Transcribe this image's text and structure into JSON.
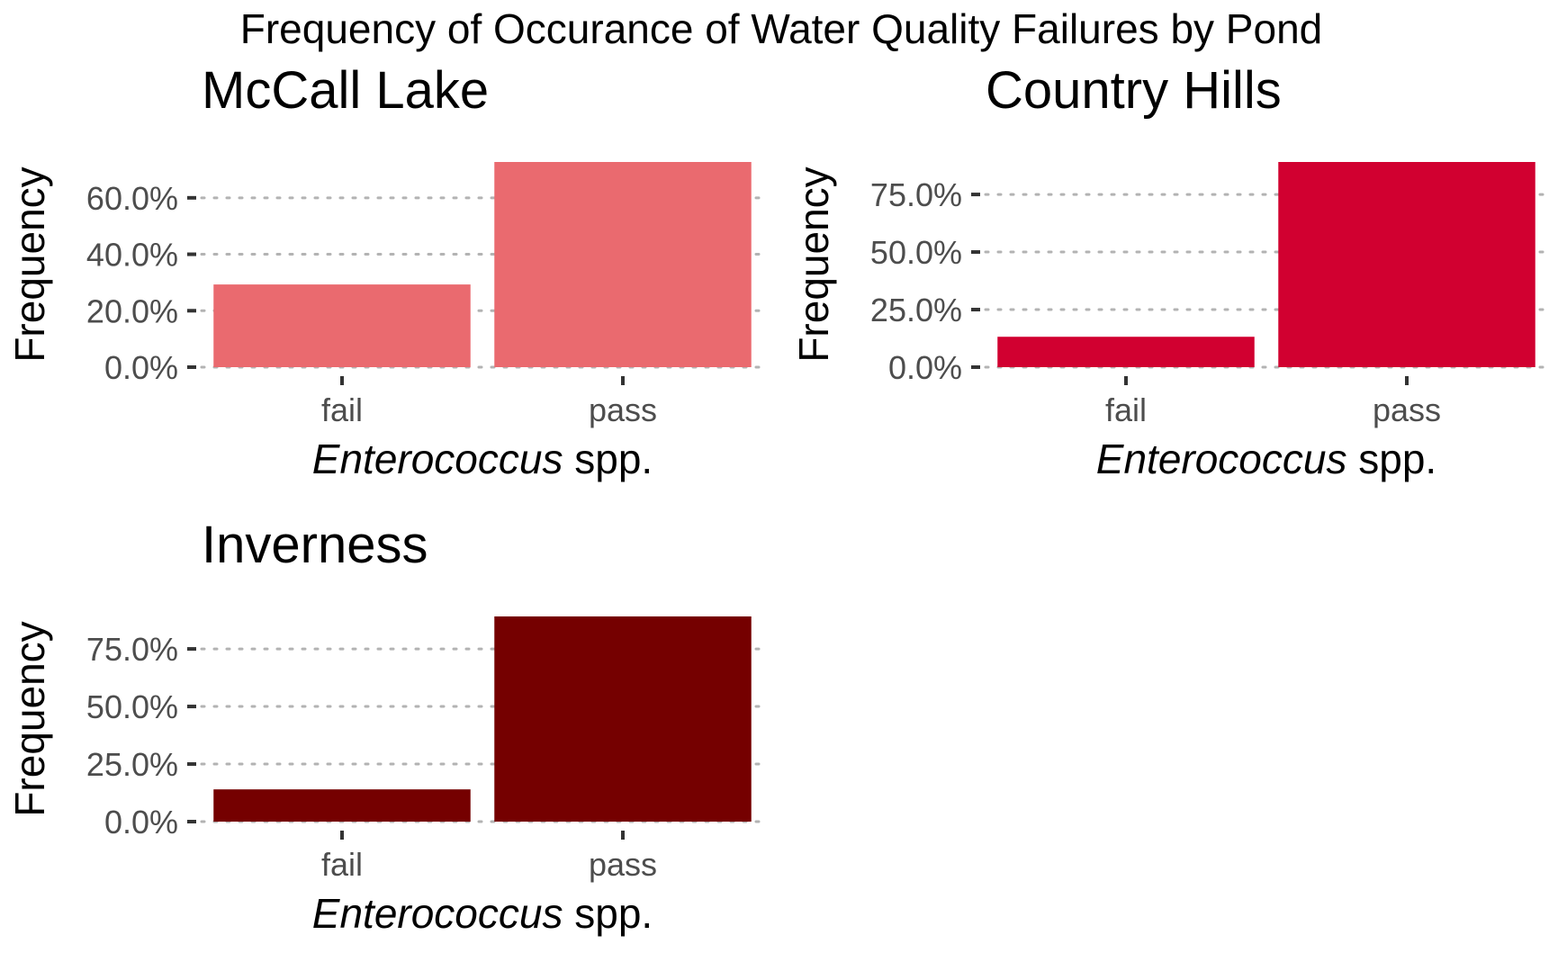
{
  "chart_data": {
    "title": "Frequency of Occurance of Water Quality Failures by Pond",
    "panels": [
      {
        "type": "bar",
        "title": "McCall Lake",
        "categories": [
          "fail",
          "pass"
        ],
        "values": [
          29.3,
          72.7
        ],
        "ylim": [
          0,
          72.7
        ],
        "yticks": [
          0,
          20,
          40,
          60
        ],
        "ytick_labels": [
          "0.0%",
          "20.0%",
          "40.0%",
          "60.0%"
        ],
        "ylabel": "Frequency",
        "xlabel_italic": "Enterococcus",
        "xlabel_rest": " spp.",
        "color": "#EA6A6F",
        "grid": "dotted, horizontal"
      },
      {
        "type": "bar",
        "title": "Country Hills",
        "categories": [
          "fail",
          "pass"
        ],
        "values": [
          13.2,
          89.1
        ],
        "ylim": [
          0,
          89.1
        ],
        "yticks": [
          0,
          25,
          50,
          75
        ],
        "ytick_labels": [
          "0.0%",
          "25.0%",
          "50.0%",
          "75.0%"
        ],
        "ylabel": "Frequency",
        "xlabel_italic": "Enterococcus",
        "xlabel_rest": " spp.",
        "color": "#D10030",
        "grid": "dotted, horizontal"
      },
      {
        "type": "bar",
        "title": "Inverness",
        "categories": [
          "fail",
          "pass"
        ],
        "values": [
          14.0,
          89.1
        ],
        "ylim": [
          0,
          89.1
        ],
        "yticks": [
          0,
          25,
          50,
          75
        ],
        "ytick_labels": [
          "0.0%",
          "25.0%",
          "50.0%",
          "75.0%"
        ],
        "ylabel": "Frequency",
        "xlabel_italic": "Enterococcus",
        "xlabel_rest": " spp.",
        "color": "#750000",
        "grid": "dotted, horizontal"
      }
    ]
  }
}
